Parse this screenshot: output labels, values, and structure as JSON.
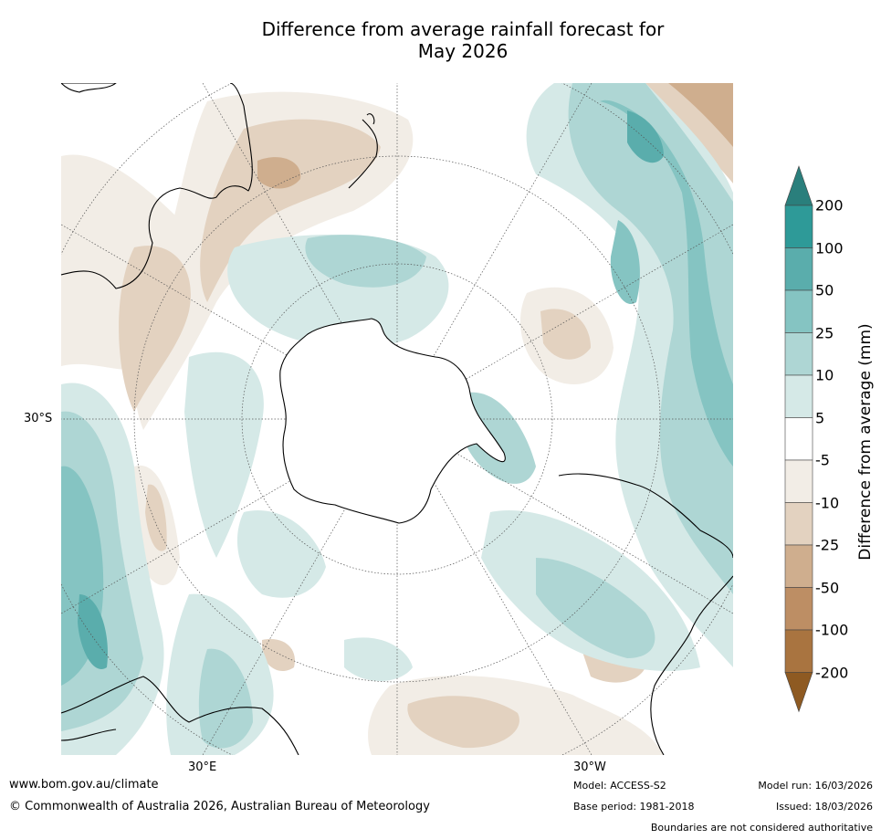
{
  "title": {
    "line1": "Difference from average rainfall forecast for",
    "line2": "May 2026"
  },
  "map": {
    "projection": "south-polar-stereographic",
    "lat_label": "30°S",
    "lon_label_left": "30°E",
    "lon_label_right": "30°W"
  },
  "colorbar": {
    "title": "Difference from average (mm)",
    "ticks": [
      "200",
      "100",
      "50",
      "25",
      "10",
      "5",
      "-5",
      "-10",
      "-25",
      "-50",
      "-100",
      "-200"
    ],
    "colors": [
      "#2a7f7c",
      "#2e9a98",
      "#5aadac",
      "#85c4c2",
      "#aed6d4",
      "#d5e9e7",
      "#ffffff",
      "#f2ede6",
      "#e3d2c0",
      "#cfae8e",
      "#bd8e64",
      "#a97440",
      "#8e5a22"
    ]
  },
  "footer": {
    "url": "www.bom.gov.au/climate",
    "copyright": "© Commonwealth of Australia 2026, Australian Bureau of Meteorology",
    "model": "Model: ACCESS-S2",
    "base_period": "Base period: 1981-2018",
    "model_run": "Model run: 16/03/2026",
    "issued": "Issued: 18/03/2026",
    "disclaimer": "Boundaries are not considered authoritative"
  }
}
